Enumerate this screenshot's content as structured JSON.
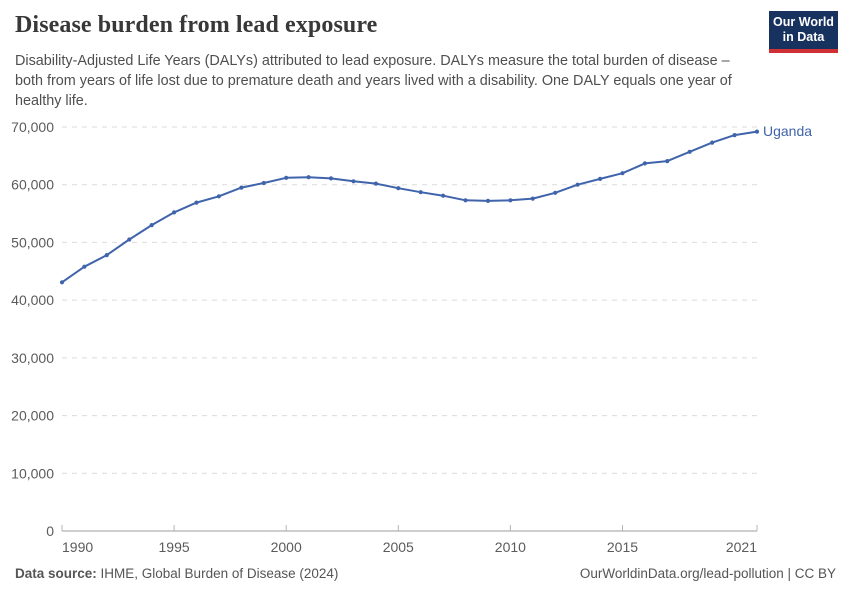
{
  "header": {
    "title": "Disease burden from lead exposure",
    "subtitle": "Disability-Adjusted Life Years (DALYs) attributed to lead exposure. DALYs measure the total burden of disease – both from years of life lost due to premature death and years lived with a disability. One DALY equals one year of healthy life.",
    "logo": {
      "line1": "Our World",
      "line2": "in Data"
    }
  },
  "chart_data": {
    "type": "line",
    "title": "Disease burden from lead exposure",
    "xlabel": "",
    "ylabel": "",
    "x": [
      1990,
      1991,
      1992,
      1993,
      1994,
      1995,
      1996,
      1997,
      1998,
      1999,
      2000,
      2001,
      2002,
      2003,
      2004,
      2005,
      2006,
      2007,
      2008,
      2009,
      2010,
      2011,
      2012,
      2013,
      2014,
      2015,
      2016,
      2017,
      2018,
      2019,
      2020,
      2021
    ],
    "series": [
      {
        "name": "Uganda",
        "color": "#4064ab",
        "values": [
          43100,
          45800,
          47800,
          50500,
          53000,
          55200,
          56900,
          58000,
          59500,
          60300,
          61200,
          61300,
          61100,
          60600,
          60200,
          59400,
          58700,
          58100,
          57300,
          57200,
          57300,
          57600,
          58600,
          60000,
          61000,
          62000,
          63700,
          64100,
          65700,
          67300,
          68600,
          69200
        ]
      }
    ],
    "xticks": [
      1990,
      1995,
      2000,
      2005,
      2010,
      2015,
      2021
    ],
    "yticks": [
      0,
      10000,
      20000,
      30000,
      40000,
      50000,
      60000,
      70000
    ],
    "ylim": [
      0,
      70000
    ],
    "xlim": [
      1990,
      2021
    ],
    "grid": "horizontal-dashed",
    "legend_position": "end-of-line",
    "colors": {
      "grid": "#dbdbdb",
      "axis": "#9e9e9e",
      "tick_text": "#5b5b5b"
    }
  },
  "footer": {
    "source_label": "Data source:",
    "source_text": " IHME, Global Burden of Disease (2024)",
    "credit": "OurWorldinData.org/lead-pollution | CC BY"
  }
}
